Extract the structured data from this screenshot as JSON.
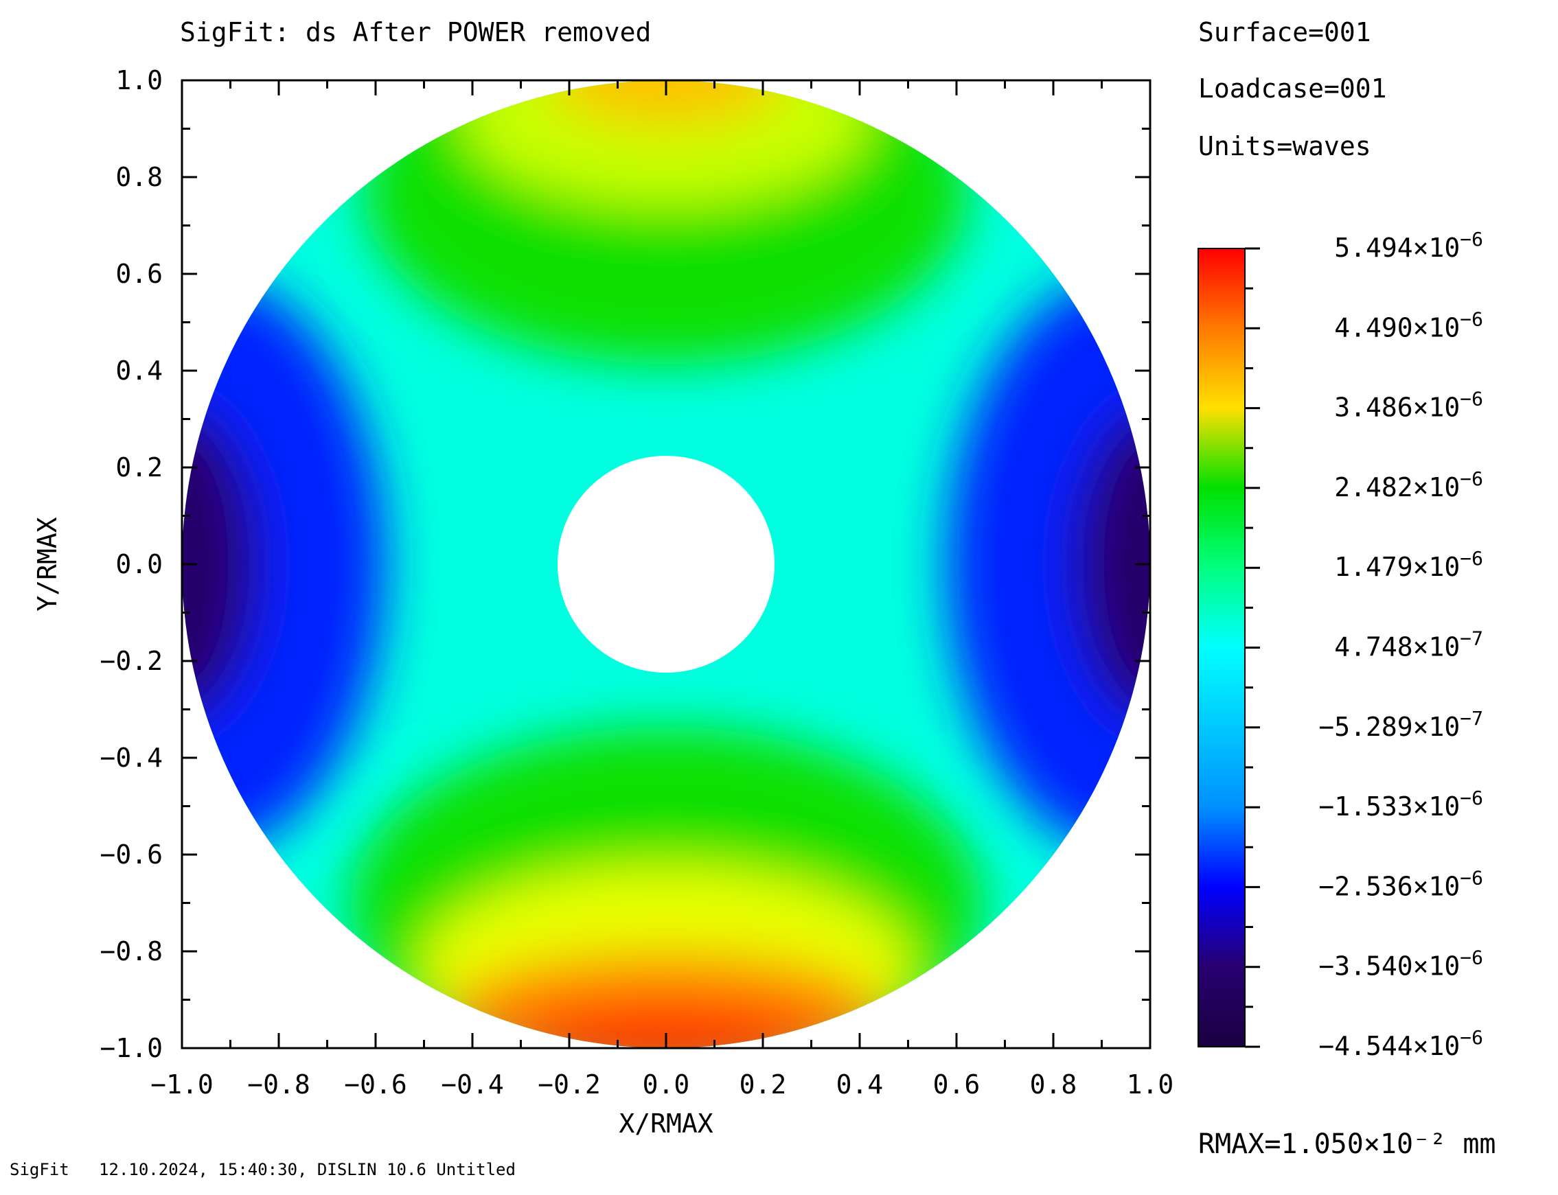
{
  "title": "SigFit: ds After POWER removed",
  "info": {
    "surface": "Surface=001",
    "loadcase": "Loadcase=001",
    "units": "Units=waves"
  },
  "rmax_label": "RMAX=1.050×10⁻² mm",
  "footer": "SigFit   12.10.2024, 15:40:30, DISLIN 10.6 Untitled",
  "chart_data": {
    "type": "heatmap",
    "title": "SigFit: ds After POWER removed",
    "xlabel": "X/RMAX",
    "ylabel": "Y/RMAX",
    "xlim": [
      -1.0,
      1.0
    ],
    "ylim": [
      -1.0,
      1.0
    ],
    "x_ticks": [
      "-1.0",
      "-0.8",
      "-0.6",
      "-0.4",
      "-0.2",
      "0.0",
      "0.2",
      "0.4",
      "0.6",
      "0.8",
      "1.0"
    ],
    "y_ticks": [
      "1.0",
      "0.8",
      "0.6",
      "0.4",
      "0.2",
      "0.0",
      "-0.2",
      "-0.4",
      "-0.6",
      "-0.8",
      "-1.0"
    ],
    "aperture": {
      "shape": "annulus",
      "outer_radius": 1.0,
      "inner_radius": 0.225
    },
    "field_description": "astigmatism-like saddle: positive at top/bottom (Y axis), negative at left/right (X axis); bottom edge reaches maximum",
    "colorbar": {
      "colormap": "rainbow",
      "min": -4.544e-06,
      "max": 5.494e-06,
      "levels": [
        5.494e-06,
        4.49e-06,
        3.486e-06,
        2.482e-06,
        1.479e-06,
        4.748e-07,
        -5.289e-07,
        -1.533e-06,
        -2.536e-06,
        -3.54e-06,
        -4.544e-06
      ],
      "labels": [
        {
          "mant": "5.494",
          "exp": "-6"
        },
        {
          "mant": "4.490",
          "exp": "-6"
        },
        {
          "mant": "3.486",
          "exp": "-6"
        },
        {
          "mant": "2.482",
          "exp": "-6"
        },
        {
          "mant": "1.479",
          "exp": "-6"
        },
        {
          "mant": "4.748",
          "exp": "-7"
        },
        {
          "mant": "-5.289",
          "exp": "-7"
        },
        {
          "mant": "-1.533",
          "exp": "-6"
        },
        {
          "mant": "-2.536",
          "exp": "-6"
        },
        {
          "mant": "-3.540",
          "exp": "-6"
        },
        {
          "mant": "-4.544",
          "exp": "-6"
        }
      ],
      "colors": [
        "#ff0000",
        "#ff7a00",
        "#ffe000",
        "#00e000",
        "#00ff80",
        "#00ffff",
        "#00c8ff",
        "#0090ff",
        "#0000ff",
        "#280070",
        "#1a0040"
      ]
    }
  }
}
